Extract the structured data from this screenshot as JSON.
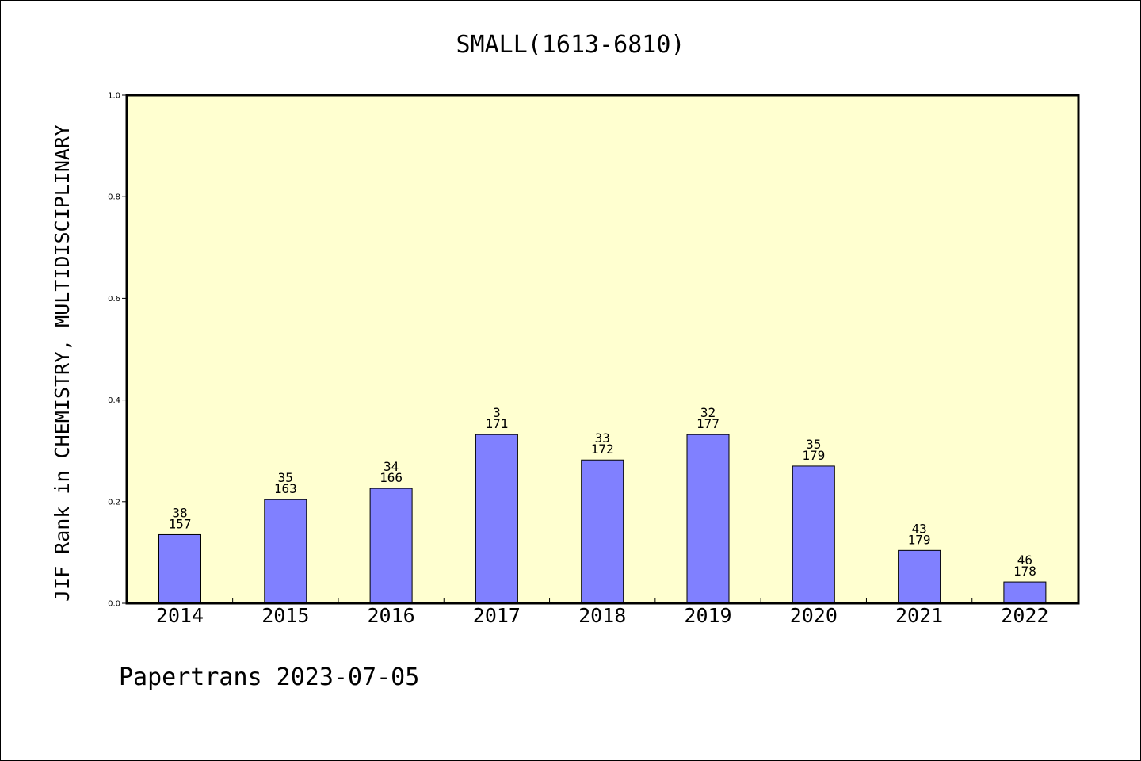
{
  "chart_data": {
    "type": "bar",
    "title": "SMALL(1613-6810)",
    "xlabel": "",
    "ylabel": "JIF Rank in CHEMISTRY, MULTIDISCIPLINARY",
    "ylim": [
      0,
      1.0
    ],
    "yticks": [
      "0.0",
      "0.2",
      "0.4",
      "0.6",
      "0.8",
      "1.0"
    ],
    "categories": [
      "2014",
      "2015",
      "2016",
      "2017",
      "2018",
      "2019",
      "2020",
      "2021",
      "2022"
    ],
    "values": [
      0.135,
      0.204,
      0.226,
      0.332,
      0.282,
      0.332,
      0.27,
      0.104,
      0.042
    ],
    "rank": [
      "38",
      "35",
      "34",
      "3",
      "33",
      "32",
      "35",
      "43",
      "46"
    ],
    "total": [
      "157",
      "163",
      "166",
      "171",
      "172",
      "177",
      "179",
      "179",
      "178"
    ],
    "grid": false,
    "colors": {
      "plot_background": "#ffffd0",
      "bar_fill": "#8080ff",
      "bar_stroke": "#000000"
    }
  },
  "footer": {
    "text": "Papertrans 2023-07-05"
  }
}
